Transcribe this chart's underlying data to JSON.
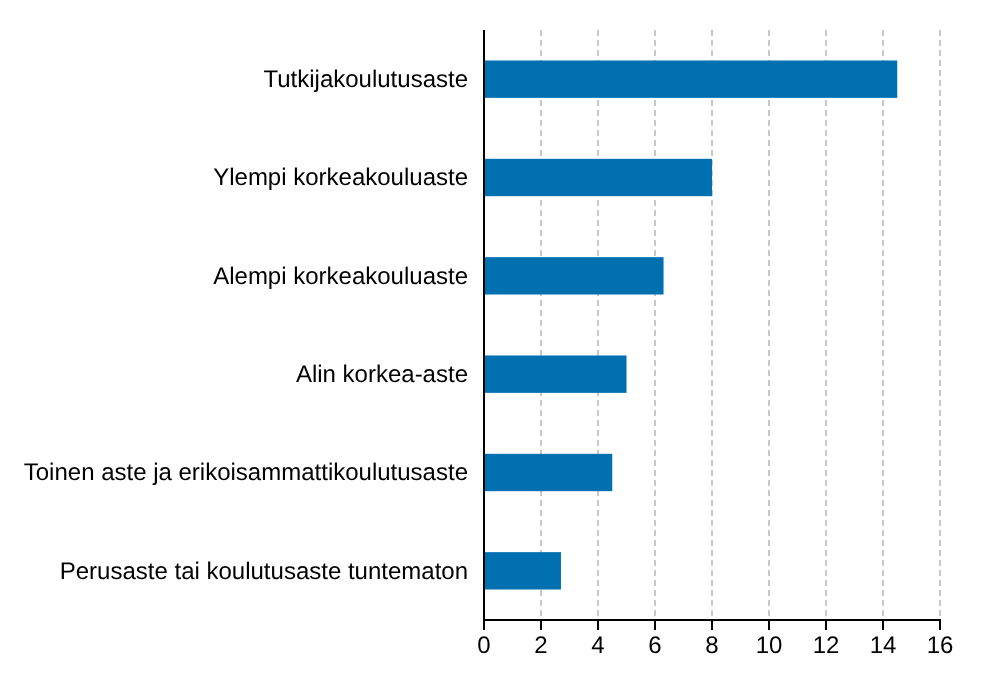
{
  "chart_data": {
    "type": "bar",
    "orientation": "horizontal",
    "categories": [
      "Tutkijakoulutusaste",
      "Ylempi korkeakouluaste",
      "Alempi korkeakouluaste",
      "Alin korkea-aste",
      "Toinen aste ja erikoisammattikoulutusaste",
      "Perusaste tai koulutusaste tuntematon"
    ],
    "values": [
      14.5,
      8.0,
      6.3,
      5.0,
      4.5,
      2.7
    ],
    "color": "#0070b0",
    "xlim": [
      0,
      16
    ],
    "xticks": [
      0,
      2,
      4,
      6,
      8,
      10,
      12,
      14,
      16
    ],
    "grid": "x"
  }
}
